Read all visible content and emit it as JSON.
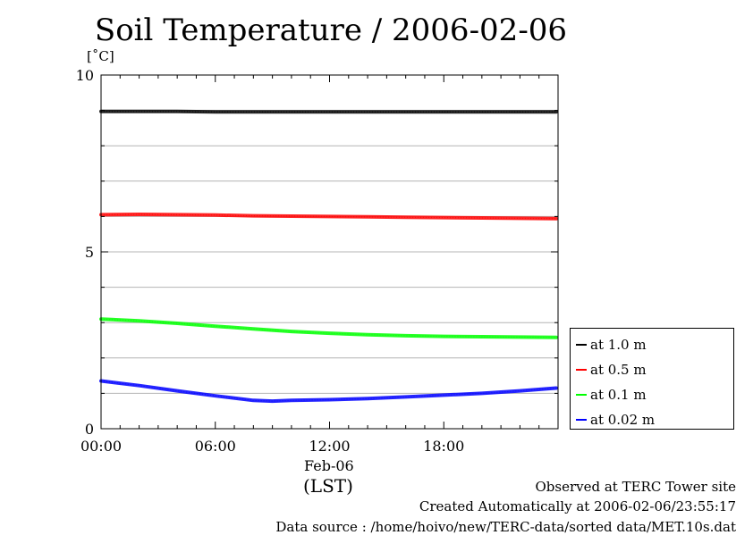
{
  "chart_data": {
    "type": "line",
    "title": "Soil Temperature / 2006-02-06",
    "ylabel": "[˚C]",
    "ylim": [
      0,
      10
    ],
    "yticks": [
      0,
      5,
      10
    ],
    "x_unit": "hours",
    "xlim": [
      0,
      24
    ],
    "xticks": [
      {
        "value": 0,
        "label": "00:00"
      },
      {
        "value": 6,
        "label": "06:00"
      },
      {
        "value": 12,
        "label": "12:00"
      },
      {
        "value": 18,
        "label": "18:00"
      }
    ],
    "x_date_label": "Feb-06",
    "x_timezone_label": "(LST)",
    "grid": true,
    "legend_position": "right",
    "series": [
      {
        "name": "at 1.0 m",
        "color": "#000000",
        "x": [
          0,
          2,
          4,
          6,
          8,
          10,
          12,
          14,
          16,
          18,
          20,
          22,
          23.9
        ],
        "values": [
          8.97,
          8.97,
          8.97,
          8.96,
          8.96,
          8.96,
          8.96,
          8.96,
          8.96,
          8.96,
          8.96,
          8.96,
          8.96
        ]
      },
      {
        "name": "at 0.5 m",
        "color": "#ff0000",
        "x": [
          0,
          2,
          4,
          6,
          8,
          10,
          12,
          14,
          16,
          18,
          20,
          22,
          23.9
        ],
        "values": [
          6.05,
          6.06,
          6.05,
          6.04,
          6.02,
          6.01,
          6.0,
          5.99,
          5.98,
          5.97,
          5.96,
          5.95,
          5.94
        ]
      },
      {
        "name": "at 0.1 m",
        "color": "#00ff00",
        "x": [
          0,
          2,
          4,
          6,
          8,
          10,
          12,
          14,
          16,
          18,
          20,
          22,
          23.9
        ],
        "values": [
          3.1,
          3.05,
          2.98,
          2.9,
          2.82,
          2.75,
          2.7,
          2.66,
          2.63,
          2.61,
          2.6,
          2.59,
          2.58
        ]
      },
      {
        "name": "at 0.02 m",
        "color": "#0000ff",
        "x": [
          0,
          2,
          4,
          6,
          8,
          9,
          10,
          12,
          14,
          16,
          18,
          20,
          22,
          23.9
        ],
        "values": [
          1.35,
          1.22,
          1.07,
          0.93,
          0.8,
          0.78,
          0.8,
          0.82,
          0.85,
          0.9,
          0.95,
          1.0,
          1.07,
          1.15
        ]
      }
    ]
  },
  "footer": {
    "site": "Observed at TERC Tower site",
    "created": "Created Automatically at 2006-02-06/23:55:17",
    "source": "Data source : /home/hoivo/new/TERC-data/sorted  data/MET.10s.dat"
  }
}
